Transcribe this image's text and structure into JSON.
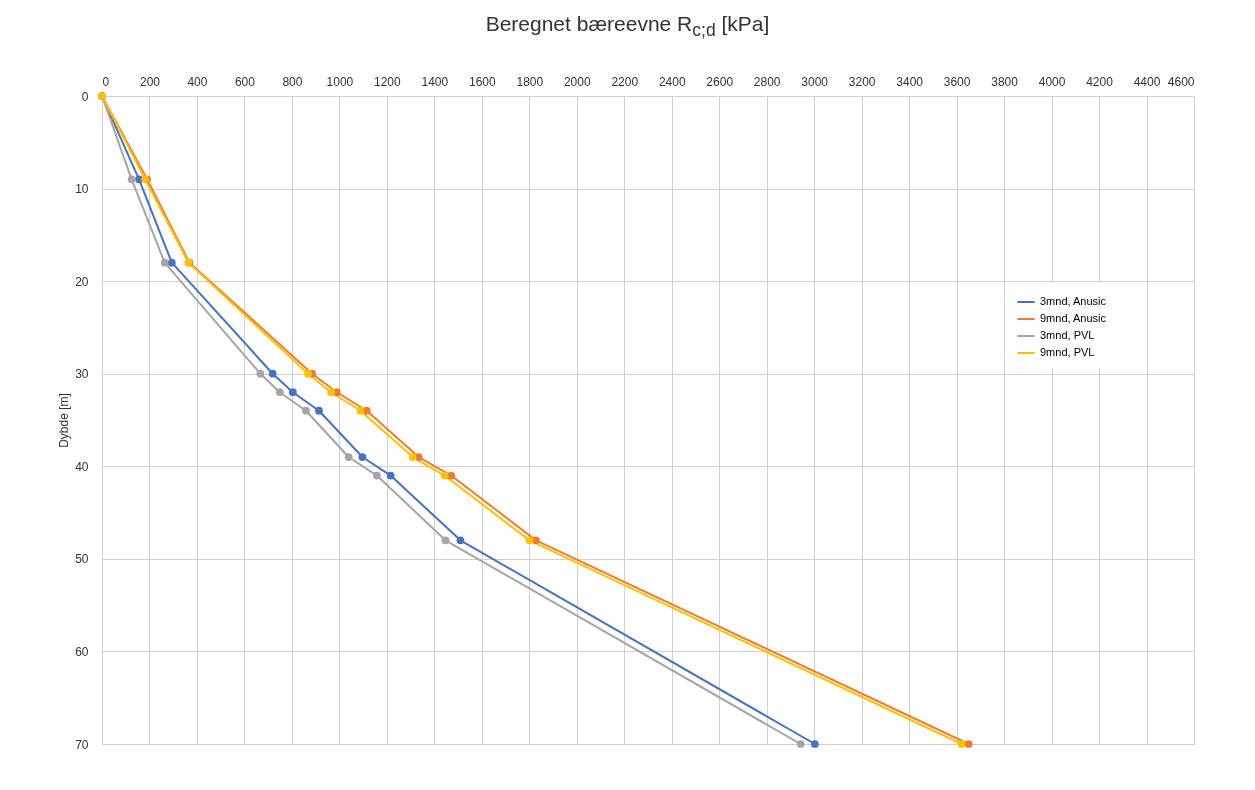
{
  "chart_data": {
    "type": "line",
    "title": "Beregnet bæreevne R$_{c;d}$ [kPa]",
    "ylabel": "Dybde [m]",
    "series": [
      {
        "name": "3mnd, Anusic",
        "color": "#4472c4",
        "x": [
          0,
          156,
          294,
          719,
          804,
          914,
          1097,
          1216,
          1510,
          3003
        ],
        "values": [
          0,
          9,
          18,
          30,
          32,
          34,
          39,
          41,
          48,
          70
        ]
      },
      {
        "name": "9mnd, Anusic",
        "color": "#ed7d31",
        "x": [
          0,
          190,
          368,
          885,
          989,
          1115,
          1334,
          1471,
          1828,
          3651
        ],
        "values": [
          0,
          9,
          18,
          30,
          32,
          34,
          39,
          41,
          48,
          70
        ]
      },
      {
        "name": "3mnd, PVL",
        "color": "#a5a5a5",
        "x": [
          0,
          125,
          264,
          667,
          749,
          859,
          1039,
          1158,
          1447,
          2943
        ],
        "values": [
          0,
          9,
          18,
          30,
          32,
          34,
          39,
          41,
          48,
          70
        ]
      },
      {
        "name": "9mnd, PVL",
        "color": "#ffc000",
        "x": [
          0,
          182,
          364,
          868,
          965,
          1089,
          1309,
          1443,
          1801,
          3621
        ],
        "values": [
          0,
          9,
          18,
          30,
          32,
          34,
          39,
          41,
          48,
          70
        ]
      }
    ],
    "xlim": [
      0,
      4600
    ],
    "xticks": [
      0,
      200,
      400,
      600,
      800,
      1000,
      1200,
      1400,
      1600,
      1800,
      2000,
      2200,
      2400,
      2600,
      2800,
      3000,
      3200,
      3400,
      3600,
      3800,
      4000,
      4200,
      4400,
      4600
    ],
    "ylim": [
      70,
      0
    ],
    "yticks": [
      0,
      10,
      20,
      30,
      40,
      50,
      60,
      70
    ],
    "grid": true,
    "legend": "right",
    "marker": "circle",
    "line_style": "solid"
  }
}
